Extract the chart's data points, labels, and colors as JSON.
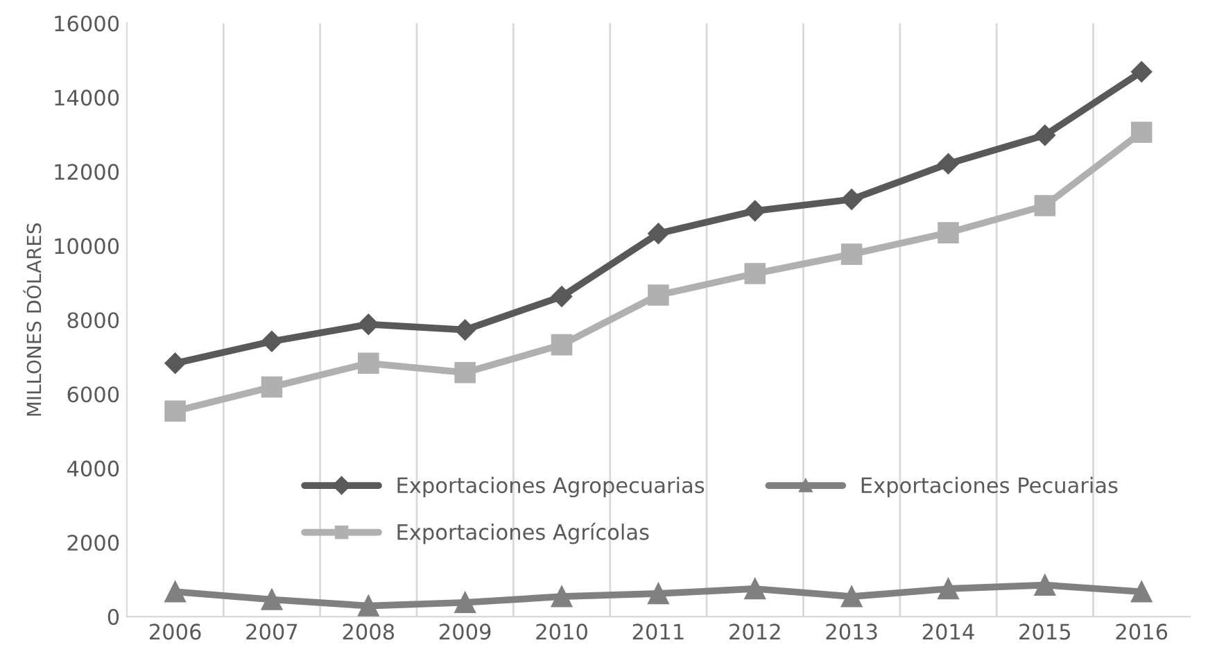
{
  "chart_data": {
    "type": "line",
    "ylabel": "MILLONES DÓLARES",
    "categories": [
      "2006",
      "2007",
      "2008",
      "2009",
      "2010",
      "2011",
      "2012",
      "2013",
      "2014",
      "2015",
      "2016"
    ],
    "series": [
      {
        "name": "Exportaciones Agropecuarias",
        "color": "#595959",
        "marker": "diamond",
        "values": [
          6830,
          7420,
          7880,
          7730,
          8630,
          10330,
          10940,
          11250,
          12210,
          12980,
          14690
        ]
      },
      {
        "name": "Exportaciones Agrícolas",
        "color": "#b0b0b0",
        "marker": "square",
        "values": [
          5540,
          6190,
          6830,
          6580,
          7330,
          8670,
          9250,
          9770,
          10350,
          11080,
          13060
        ]
      },
      {
        "name": "Exportaciones Pecuarias",
        "color": "#808080",
        "marker": "triangle",
        "values": [
          670,
          460,
          290,
          380,
          540,
          620,
          750,
          540,
          750,
          850,
          670
        ]
      }
    ],
    "ylim": [
      0,
      16000
    ],
    "yticks": [
      0,
      2000,
      4000,
      6000,
      8000,
      10000,
      12000,
      14000,
      16000
    ],
    "grid": "x",
    "legend": "bottom",
    "line_style": "solid"
  }
}
